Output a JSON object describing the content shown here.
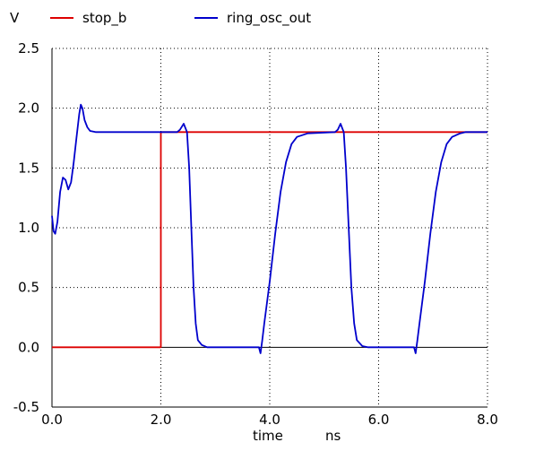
{
  "chart_data": {
    "type": "line",
    "title": "",
    "ylabel": "V",
    "xlabel": "time",
    "x_unit": "ns",
    "xlim": [
      0,
      8
    ],
    "ylim": [
      -0.5,
      2.5
    ],
    "x_ticks": [
      "0.0",
      "2.0",
      "4.0",
      "6.0",
      "8.0"
    ],
    "y_ticks": [
      "-0.5",
      "0.0",
      "0.5",
      "1.0",
      "1.5",
      "2.0",
      "2.5"
    ],
    "grid": true,
    "legend_position": "top",
    "series": [
      {
        "name": "stop_b",
        "color": "#dd0000",
        "points": [
          [
            0.0,
            0.0
          ],
          [
            1.99,
            0.0
          ],
          [
            2.0,
            0.0
          ],
          [
            2.0,
            1.8
          ],
          [
            8.0,
            1.8
          ]
        ]
      },
      {
        "name": "ring_osc_out",
        "color": "#0000cc",
        "points": [
          [
            0.0,
            1.1
          ],
          [
            0.03,
            0.97
          ],
          [
            0.06,
            0.95
          ],
          [
            0.1,
            1.05
          ],
          [
            0.15,
            1.3
          ],
          [
            0.2,
            1.42
          ],
          [
            0.25,
            1.4
          ],
          [
            0.3,
            1.32
          ],
          [
            0.35,
            1.38
          ],
          [
            0.4,
            1.55
          ],
          [
            0.45,
            1.75
          ],
          [
            0.5,
            1.95
          ],
          [
            0.53,
            2.03
          ],
          [
            0.56,
            2.0
          ],
          [
            0.6,
            1.9
          ],
          [
            0.65,
            1.84
          ],
          [
            0.7,
            1.81
          ],
          [
            0.8,
            1.8
          ],
          [
            1.0,
            1.8
          ],
          [
            2.3,
            1.8
          ],
          [
            2.35,
            1.82
          ],
          [
            2.42,
            1.87
          ],
          [
            2.48,
            1.8
          ],
          [
            2.52,
            1.5
          ],
          [
            2.56,
            1.0
          ],
          [
            2.6,
            0.5
          ],
          [
            2.64,
            0.2
          ],
          [
            2.68,
            0.06
          ],
          [
            2.75,
            0.02
          ],
          [
            2.85,
            0.0
          ],
          [
            3.8,
            0.0
          ],
          [
            3.83,
            -0.05
          ],
          [
            3.86,
            0.05
          ],
          [
            3.9,
            0.2
          ],
          [
            4.0,
            0.55
          ],
          [
            4.1,
            0.95
          ],
          [
            4.2,
            1.3
          ],
          [
            4.3,
            1.55
          ],
          [
            4.4,
            1.7
          ],
          [
            4.5,
            1.76
          ],
          [
            4.7,
            1.79
          ],
          [
            5.2,
            1.8
          ],
          [
            5.25,
            1.82
          ],
          [
            5.3,
            1.87
          ],
          [
            5.36,
            1.8
          ],
          [
            5.4,
            1.5
          ],
          [
            5.45,
            1.0
          ],
          [
            5.5,
            0.5
          ],
          [
            5.55,
            0.2
          ],
          [
            5.6,
            0.06
          ],
          [
            5.7,
            0.01
          ],
          [
            5.8,
            0.0
          ],
          [
            6.65,
            0.0
          ],
          [
            6.68,
            -0.05
          ],
          [
            6.71,
            0.05
          ],
          [
            6.75,
            0.2
          ],
          [
            6.85,
            0.55
          ],
          [
            6.95,
            0.95
          ],
          [
            7.05,
            1.3
          ],
          [
            7.15,
            1.55
          ],
          [
            7.25,
            1.7
          ],
          [
            7.35,
            1.76
          ],
          [
            7.5,
            1.79
          ],
          [
            7.6,
            1.8
          ],
          [
            8.0,
            1.8
          ]
        ]
      }
    ]
  }
}
